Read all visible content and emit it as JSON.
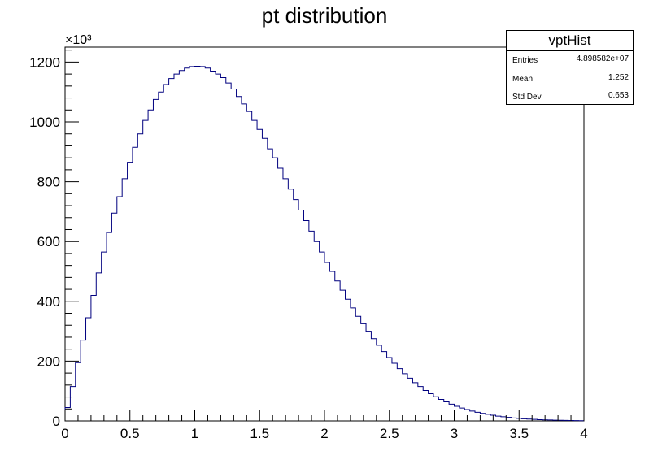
{
  "title": "pt distribution",
  "stats_box": {
    "name": "vptHist",
    "rows": [
      {
        "label": "Entries",
        "value": "4.898582e+07"
      },
      {
        "label": "Mean",
        "value": "1.252"
      },
      {
        "label": "Std Dev",
        "value": "0.653"
      }
    ]
  },
  "chart_data": {
    "type": "bar",
    "style": "step-histogram",
    "title": "pt distribution",
    "xlabel": "",
    "ylabel": "",
    "y_multiplier": "×10³",
    "xlim": [
      0,
      4
    ],
    "ylim": [
      0,
      1250
    ],
    "x_ticks": [
      0,
      0.5,
      1,
      1.5,
      2,
      2.5,
      3,
      3.5,
      4
    ],
    "y_ticks": [
      0,
      200,
      400,
      600,
      800,
      1000,
      1200
    ],
    "bin_width": 0.04,
    "bin_edges_range": [
      0,
      4
    ],
    "values": [
      45,
      115,
      195,
      270,
      345,
      420,
      495,
      565,
      630,
      695,
      750,
      810,
      865,
      915,
      960,
      1005,
      1040,
      1075,
      1100,
      1125,
      1145,
      1160,
      1172,
      1180,
      1185,
      1186,
      1185,
      1180,
      1170,
      1160,
      1148,
      1130,
      1110,
      1085,
      1060,
      1035,
      1005,
      975,
      945,
      910,
      880,
      845,
      810,
      775,
      740,
      705,
      670,
      635,
      600,
      565,
      530,
      500,
      468,
      437,
      407,
      378,
      350,
      325,
      300,
      275,
      253,
      232,
      212,
      193,
      175,
      158,
      143,
      128,
      115,
      102,
      91,
      81,
      72,
      64,
      56,
      49,
      43,
      38,
      33,
      29,
      25,
      22,
      19,
      16,
      14,
      12,
      10,
      8.5,
      7,
      6,
      5,
      4.2,
      3.5,
      3,
      2.5,
      2,
      1.6,
      1.3,
      1,
      0.8
    ],
    "line_color": "#00007f",
    "axis_color": "#000000"
  }
}
